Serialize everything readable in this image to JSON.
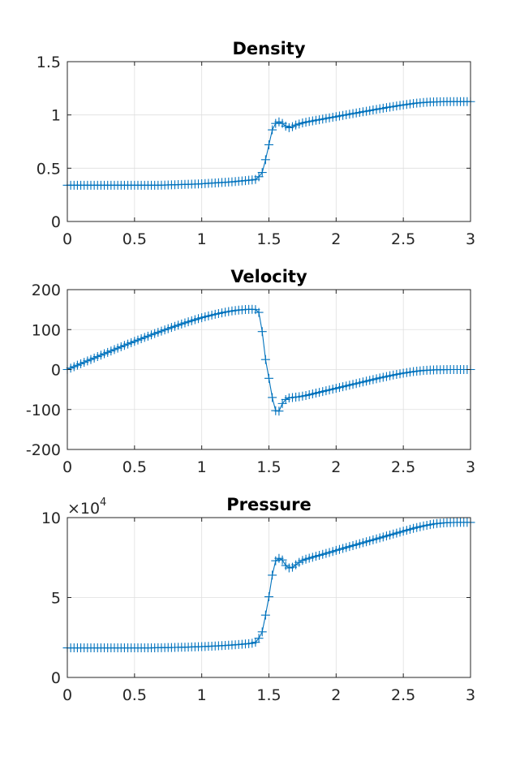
{
  "chart_data": [
    {
      "type": "line",
      "title": "Density",
      "xlim": [
        0,
        3
      ],
      "ylim": [
        0,
        1.5
      ],
      "xticks": [
        0,
        0.5,
        1,
        1.5,
        2,
        2.5,
        3
      ],
      "xtick_labels": [
        "0",
        "0.5",
        "1",
        "1.5",
        "2",
        "2.5",
        "3"
      ],
      "yticks": [
        0,
        0.5,
        1,
        1.5
      ],
      "ytick_labels": [
        "0",
        "0.5",
        "1",
        "1.5"
      ],
      "grid": true,
      "marker": "plus",
      "color": "#0072bd",
      "x": [
        0,
        0.025,
        0.05,
        0.075,
        0.1,
        0.125,
        0.15,
        0.175,
        0.2,
        0.225,
        0.25,
        0.275,
        0.3,
        0.325,
        0.35,
        0.375,
        0.4,
        0.425,
        0.45,
        0.475,
        0.5,
        0.525,
        0.55,
        0.575,
        0.6,
        0.625,
        0.65,
        0.675,
        0.7,
        0.725,
        0.75,
        0.775,
        0.8,
        0.825,
        0.85,
        0.875,
        0.9,
        0.925,
        0.95,
        0.975,
        1.0,
        1.025,
        1.05,
        1.075,
        1.1,
        1.125,
        1.15,
        1.175,
        1.2,
        1.225,
        1.25,
        1.275,
        1.3,
        1.325,
        1.35,
        1.375,
        1.4,
        1.425,
        1.45,
        1.475,
        1.5,
        1.525,
        1.55,
        1.575,
        1.6,
        1.625,
        1.65,
        1.675,
        1.7,
        1.725,
        1.75,
        1.775,
        1.8,
        1.825,
        1.85,
        1.875,
        1.9,
        1.925,
        1.95,
        1.975,
        2.0,
        2.025,
        2.05,
        2.075,
        2.1,
        2.125,
        2.15,
        2.175,
        2.2,
        2.225,
        2.25,
        2.275,
        2.3,
        2.325,
        2.35,
        2.375,
        2.4,
        2.425,
        2.45,
        2.475,
        2.5,
        2.525,
        2.55,
        2.575,
        2.6,
        2.625,
        2.65,
        2.675,
        2.7,
        2.725,
        2.75,
        2.775,
        2.8,
        2.825,
        2.85,
        2.875,
        2.9,
        2.925,
        2.95,
        2.975,
        3.0
      ],
      "y": [
        0.34,
        0.34,
        0.34,
        0.34,
        0.34,
        0.34,
        0.34,
        0.34,
        0.34,
        0.34,
        0.34,
        0.34,
        0.34,
        0.34,
        0.34,
        0.34,
        0.34,
        0.34,
        0.34,
        0.34,
        0.34,
        0.34,
        0.34,
        0.34,
        0.34,
        0.34,
        0.34,
        0.34,
        0.341,
        0.342,
        0.343,
        0.344,
        0.345,
        0.346,
        0.347,
        0.348,
        0.349,
        0.35,
        0.351,
        0.352,
        0.354,
        0.356,
        0.358,
        0.36,
        0.362,
        0.364,
        0.366,
        0.368,
        0.37,
        0.372,
        0.375,
        0.378,
        0.381,
        0.384,
        0.387,
        0.39,
        0.395,
        0.42,
        0.46,
        0.58,
        0.72,
        0.86,
        0.92,
        0.935,
        0.92,
        0.895,
        0.88,
        0.89,
        0.905,
        0.915,
        0.925,
        0.932,
        0.938,
        0.944,
        0.95,
        0.955,
        0.961,
        0.967,
        0.973,
        0.978,
        0.984,
        0.99,
        0.996,
        1.001,
        1.007,
        1.013,
        1.018,
        1.024,
        1.03,
        1.035,
        1.041,
        1.047,
        1.052,
        1.058,
        1.063,
        1.069,
        1.074,
        1.079,
        1.084,
        1.089,
        1.094,
        1.098,
        1.103,
        1.107,
        1.111,
        1.114,
        1.117,
        1.119,
        1.121,
        1.122,
        1.123,
        1.124,
        1.124,
        1.125,
        1.125,
        1.125,
        1.125,
        1.125,
        1.125,
        1.125,
        1.125
      ]
    },
    {
      "type": "line",
      "title": "Velocity",
      "xlim": [
        0,
        3
      ],
      "ylim": [
        -200,
        200
      ],
      "xticks": [
        0,
        0.5,
        1,
        1.5,
        2,
        2.5,
        3
      ],
      "xtick_labels": [
        "0",
        "0.5",
        "1",
        "1.5",
        "2",
        "2.5",
        "3"
      ],
      "yticks": [
        -200,
        -100,
        0,
        100,
        200
      ],
      "ytick_labels": [
        "-200",
        "-100",
        "0",
        "100",
        "200"
      ],
      "grid": true,
      "marker": "plus",
      "color": "#0072bd",
      "x": [
        0,
        0.025,
        0.05,
        0.075,
        0.1,
        0.125,
        0.15,
        0.175,
        0.2,
        0.225,
        0.25,
        0.275,
        0.3,
        0.325,
        0.35,
        0.375,
        0.4,
        0.425,
        0.45,
        0.475,
        0.5,
        0.525,
        0.55,
        0.575,
        0.6,
        0.625,
        0.65,
        0.675,
        0.7,
        0.725,
        0.75,
        0.775,
        0.8,
        0.825,
        0.85,
        0.875,
        0.9,
        0.925,
        0.95,
        0.975,
        1.0,
        1.025,
        1.05,
        1.075,
        1.1,
        1.125,
        1.15,
        1.175,
        1.2,
        1.225,
        1.25,
        1.275,
        1.3,
        1.325,
        1.35,
        1.375,
        1.4,
        1.425,
        1.45,
        1.475,
        1.5,
        1.525,
        1.55,
        1.575,
        1.6,
        1.625,
        1.65,
        1.675,
        1.7,
        1.725,
        1.75,
        1.775,
        1.8,
        1.825,
        1.85,
        1.875,
        1.9,
        1.925,
        1.95,
        1.975,
        2.0,
        2.025,
        2.05,
        2.075,
        2.1,
        2.125,
        2.15,
        2.175,
        2.2,
        2.225,
        2.25,
        2.275,
        2.3,
        2.325,
        2.35,
        2.375,
        2.4,
        2.425,
        2.45,
        2.475,
        2.5,
        2.525,
        2.55,
        2.575,
        2.6,
        2.625,
        2.65,
        2.675,
        2.7,
        2.725,
        2.75,
        2.775,
        2.8,
        2.825,
        2.85,
        2.875,
        2.9,
        2.925,
        2.95,
        2.975,
        3.0
      ],
      "y": [
        0,
        3.6,
        7.2,
        10.8,
        14.4,
        18,
        21.6,
        25.2,
        28.8,
        32.4,
        36,
        39.5,
        43,
        46.5,
        50,
        53.5,
        57,
        60.4,
        63.8,
        67.2,
        70.5,
        73.8,
        77.1,
        80.4,
        83.6,
        86.8,
        90,
        93.1,
        96.2,
        99.3,
        102.3,
        105.3,
        108.2,
        111.1,
        114,
        116.8,
        119.5,
        122.2,
        124.8,
        127.3,
        129.7,
        132,
        134.2,
        136.3,
        138.3,
        140.2,
        142,
        143.7,
        145.2,
        146.6,
        147.8,
        148.8,
        149.6,
        150.2,
        150.6,
        150.7,
        150,
        143,
        95,
        25,
        -22,
        -70,
        -103,
        -104,
        -85,
        -75,
        -71,
        -70,
        -69,
        -68,
        -66.5,
        -65,
        -63,
        -61,
        -59,
        -57,
        -55,
        -53,
        -51,
        -49,
        -47,
        -45,
        -43,
        -41,
        -39,
        -37,
        -35,
        -33,
        -31,
        -29,
        -27,
        -25,
        -23,
        -21,
        -19.2,
        -17.4,
        -15.6,
        -13.8,
        -12.2,
        -10.6,
        -9.1,
        -7.7,
        -6.4,
        -5.2,
        -4.1,
        -3.2,
        -2.4,
        -1.8,
        -1.3,
        -0.9,
        -0.6,
        -0.4,
        -0.2,
        -0.1,
        0,
        0,
        0,
        0,
        0,
        0,
        0
      ]
    },
    {
      "type": "line",
      "title": "Pressure",
      "xlim": [
        0,
        3
      ],
      "ylim": [
        0,
        100000
      ],
      "xticks": [
        0,
        0.5,
        1,
        1.5,
        2,
        2.5,
        3
      ],
      "xtick_labels": [
        "0",
        "0.5",
        "1",
        "1.5",
        "2",
        "2.5",
        "3"
      ],
      "yticks": [
        0,
        50000,
        100000
      ],
      "ytick_labels": [
        "0",
        "5",
        "10"
      ],
      "y_exponent_base": "×10",
      "y_exponent_power": "4",
      "grid": true,
      "marker": "plus",
      "color": "#0072bd",
      "x": [
        0,
        0.025,
        0.05,
        0.075,
        0.1,
        0.125,
        0.15,
        0.175,
        0.2,
        0.225,
        0.25,
        0.275,
        0.3,
        0.325,
        0.35,
        0.375,
        0.4,
        0.425,
        0.45,
        0.475,
        0.5,
        0.525,
        0.55,
        0.575,
        0.6,
        0.625,
        0.65,
        0.675,
        0.7,
        0.725,
        0.75,
        0.775,
        0.8,
        0.825,
        0.85,
        0.875,
        0.9,
        0.925,
        0.95,
        0.975,
        1.0,
        1.025,
        1.05,
        1.075,
        1.1,
        1.125,
        1.15,
        1.175,
        1.2,
        1.225,
        1.25,
        1.275,
        1.3,
        1.325,
        1.35,
        1.375,
        1.4,
        1.425,
        1.45,
        1.475,
        1.5,
        1.525,
        1.55,
        1.575,
        1.6,
        1.625,
        1.65,
        1.675,
        1.7,
        1.725,
        1.75,
        1.775,
        1.8,
        1.825,
        1.85,
        1.875,
        1.9,
        1.925,
        1.95,
        1.975,
        2.0,
        2.025,
        2.05,
        2.075,
        2.1,
        2.125,
        2.15,
        2.175,
        2.2,
        2.225,
        2.25,
        2.275,
        2.3,
        2.325,
        2.35,
        2.375,
        2.4,
        2.425,
        2.45,
        2.475,
        2.5,
        2.525,
        2.55,
        2.575,
        2.6,
        2.625,
        2.65,
        2.675,
        2.7,
        2.725,
        2.75,
        2.775,
        2.8,
        2.825,
        2.85,
        2.875,
        2.9,
        2.925,
        2.95,
        2.975,
        3.0
      ],
      "y": [
        18500,
        18500,
        18500,
        18500,
        18500,
        18500,
        18500,
        18500,
        18500,
        18500,
        18500,
        18500,
        18500,
        18500,
        18500,
        18500,
        18500,
        18500,
        18500,
        18500,
        18500,
        18500,
        18500,
        18500,
        18500,
        18520,
        18550,
        18580,
        18610,
        18650,
        18690,
        18730,
        18780,
        18830,
        18880,
        18940,
        19000,
        19070,
        19140,
        19210,
        19290,
        19380,
        19470,
        19570,
        19670,
        19780,
        19900,
        20020,
        20150,
        20290,
        20440,
        20600,
        20770,
        20950,
        21150,
        21400,
        22000,
        24500,
        28500,
        39000,
        50500,
        64000,
        73000,
        74500,
        73500,
        70000,
        68500,
        69000,
        70500,
        72000,
        73200,
        74000,
        74600,
        75200,
        75800,
        76400,
        77000,
        77600,
        78200,
        78800,
        79500,
        80100,
        80700,
        81300,
        81900,
        82500,
        83100,
        83700,
        84300,
        84900,
        85500,
        86100,
        86700,
        87300,
        87900,
        88500,
        89100,
        89700,
        90300,
        90900,
        91500,
        92100,
        92700,
        93300,
        93800,
        94300,
        94800,
        95200,
        95600,
        96000,
        96300,
        96500,
        96700,
        96800,
        96900,
        96950,
        97000,
        97000,
        97000,
        97000,
        97000
      ]
    }
  ]
}
